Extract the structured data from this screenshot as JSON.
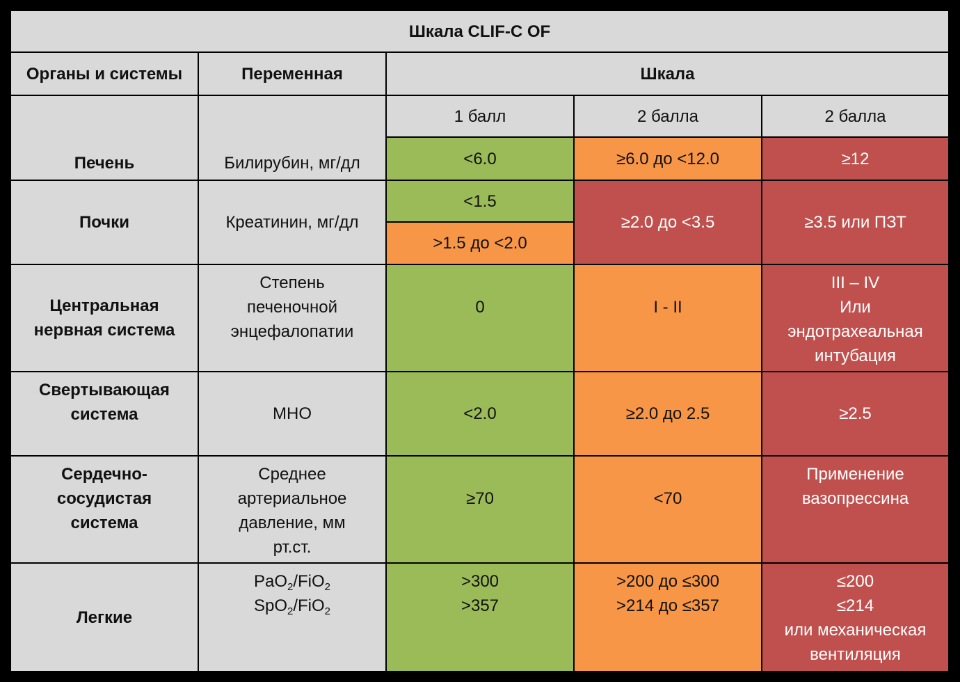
{
  "title": "Шкала CLIF-C OF",
  "headers": {
    "organ": "Органы и системы",
    "variable": "Переменная",
    "scale": "Шкала"
  },
  "score_labels": [
    "1 балл",
    "2 балла",
    "2 балла"
  ],
  "rows": {
    "liver": {
      "organ": "Печень",
      "variable": "Билирубин, мг/дл",
      "s1": "<6.0",
      "s2": "≥6.0 до <12.0",
      "s3": "≥12"
    },
    "kidney": {
      "organ": "Почки",
      "variable": "Креатинин, мг/дл",
      "s1a": "<1.5",
      "s1b": ">1.5 до <2.0",
      "s2": "≥2.0 до <3.5",
      "s3": "≥3.5 или ПЗТ"
    },
    "cns": {
      "organ_lines": [
        "Центральная",
        "нервная система"
      ],
      "variable_lines": [
        "Степень",
        "печеночной",
        "энцефалопатии"
      ],
      "s1": "0",
      "s2": "I - II",
      "s3_lines": [
        "III – IV",
        "Или",
        "эндотрахеальная",
        "интубация"
      ]
    },
    "coag": {
      "organ_lines": [
        "Свертывающая",
        "система"
      ],
      "variable": "МНО",
      "s1": "<2.0",
      "s2": "≥2.0 до 2.5",
      "s3": "≥2.5"
    },
    "cardio": {
      "organ_lines": [
        "Сердечно-",
        "сосудистая",
        "система"
      ],
      "variable_lines": [
        "Среднее",
        "артериальное",
        "давление, мм",
        "рт.ст."
      ],
      "s1": "≥70",
      "s2": "<70",
      "s3_lines": [
        "Применение",
        "вазопрессина"
      ]
    },
    "lungs": {
      "organ": "Легкие",
      "var1": {
        "a": "PaO",
        "a_sub": "2",
        "b": "/FiO",
        "b_sub": "2"
      },
      "var2": {
        "a": "SpO",
        "a_sub": "2",
        "b": "/FiO",
        "b_sub": "2"
      },
      "s1_lines": [
        ">300",
        ">357"
      ],
      "s2_lines": [
        ">200 до ≤300",
        ">214 до ≤357"
      ],
      "s3_lines": [
        "≤200",
        "≤214",
        "или механическая",
        "вентиляция"
      ]
    }
  },
  "colors": {
    "grey": "#d9d9d9",
    "green": "#9bbb59",
    "orange": "#f79646",
    "red": "#c0504d"
  }
}
